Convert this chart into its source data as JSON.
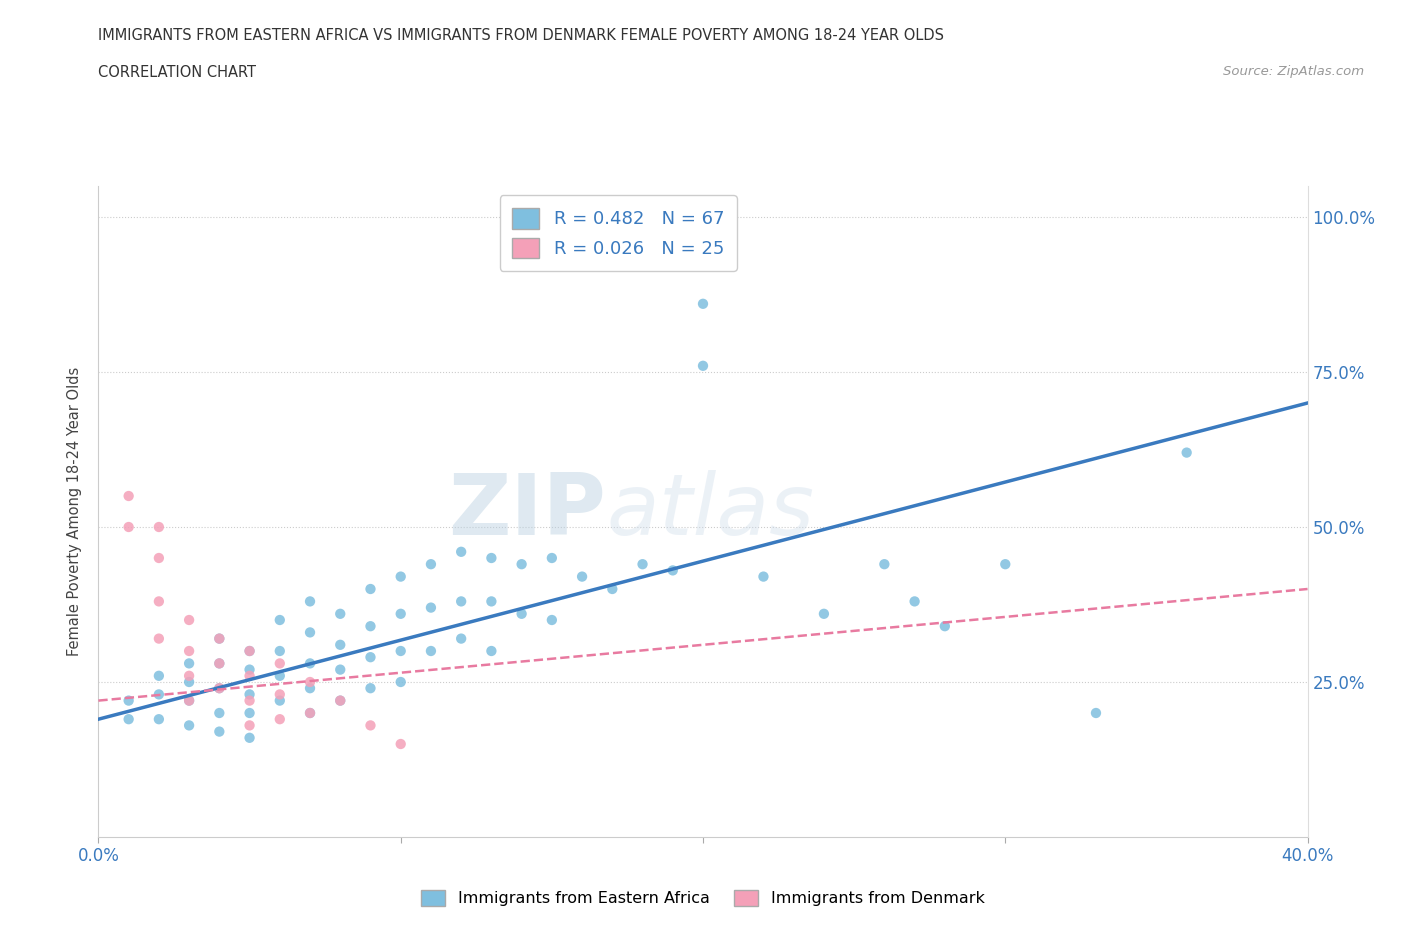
{
  "title_line1": "IMMIGRANTS FROM EASTERN AFRICA VS IMMIGRANTS FROM DENMARK FEMALE POVERTY AMONG 18-24 YEAR OLDS",
  "title_line2": "CORRELATION CHART",
  "source_text": "Source: ZipAtlas.com",
  "ylabel": "Female Poverty Among 18-24 Year Olds",
  "xlim": [
    0.0,
    0.4
  ],
  "ylim": [
    0.0,
    1.05
  ],
  "ytick_positions": [
    0.25,
    0.5,
    0.75,
    1.0
  ],
  "ytick_labels": [
    "25.0%",
    "50.0%",
    "75.0%",
    "100.0%"
  ],
  "blue_color": "#7fbfdf",
  "pink_color": "#f4a0b8",
  "blue_line_color": "#3a7abf",
  "pink_line_color": "#e87aa0",
  "R_blue": 0.482,
  "N_blue": 67,
  "R_pink": 0.026,
  "N_pink": 25,
  "watermark": "ZIPatlas",
  "legend_blue_label": "Immigrants from Eastern Africa",
  "legend_pink_label": "Immigrants from Denmark",
  "blue_scatter_x": [
    0.01,
    0.01,
    0.02,
    0.02,
    0.02,
    0.03,
    0.03,
    0.03,
    0.03,
    0.04,
    0.04,
    0.04,
    0.04,
    0.04,
    0.05,
    0.05,
    0.05,
    0.05,
    0.05,
    0.06,
    0.06,
    0.06,
    0.06,
    0.07,
    0.07,
    0.07,
    0.07,
    0.07,
    0.08,
    0.08,
    0.08,
    0.08,
    0.09,
    0.09,
    0.09,
    0.09,
    0.1,
    0.1,
    0.1,
    0.1,
    0.11,
    0.11,
    0.11,
    0.12,
    0.12,
    0.12,
    0.13,
    0.13,
    0.13,
    0.14,
    0.14,
    0.15,
    0.15,
    0.16,
    0.17,
    0.18,
    0.19,
    0.2,
    0.2,
    0.22,
    0.24,
    0.26,
    0.27,
    0.28,
    0.3,
    0.33,
    0.36
  ],
  "blue_scatter_y": [
    0.22,
    0.19,
    0.26,
    0.23,
    0.19,
    0.28,
    0.25,
    0.22,
    0.18,
    0.32,
    0.28,
    0.24,
    0.2,
    0.17,
    0.3,
    0.27,
    0.23,
    0.2,
    0.16,
    0.35,
    0.3,
    0.26,
    0.22,
    0.38,
    0.33,
    0.28,
    0.24,
    0.2,
    0.36,
    0.31,
    0.27,
    0.22,
    0.4,
    0.34,
    0.29,
    0.24,
    0.42,
    0.36,
    0.3,
    0.25,
    0.44,
    0.37,
    0.3,
    0.46,
    0.38,
    0.32,
    0.45,
    0.38,
    0.3,
    0.44,
    0.36,
    0.45,
    0.35,
    0.42,
    0.4,
    0.44,
    0.43,
    0.86,
    0.76,
    0.42,
    0.36,
    0.44,
    0.38,
    0.34,
    0.44,
    0.2,
    0.62
  ],
  "pink_scatter_x": [
    0.01,
    0.01,
    0.02,
    0.02,
    0.02,
    0.02,
    0.03,
    0.03,
    0.03,
    0.03,
    0.04,
    0.04,
    0.04,
    0.05,
    0.05,
    0.05,
    0.05,
    0.06,
    0.06,
    0.06,
    0.07,
    0.07,
    0.08,
    0.09,
    0.1
  ],
  "pink_scatter_y": [
    0.55,
    0.5,
    0.5,
    0.45,
    0.38,
    0.32,
    0.35,
    0.3,
    0.26,
    0.22,
    0.32,
    0.28,
    0.24,
    0.3,
    0.26,
    0.22,
    0.18,
    0.28,
    0.23,
    0.19,
    0.25,
    0.2,
    0.22,
    0.18,
    0.15
  ],
  "blue_trend_x": [
    0.0,
    0.4
  ],
  "blue_trend_y": [
    0.19,
    0.7
  ],
  "pink_trend_x": [
    0.0,
    0.4
  ],
  "pink_trend_y": [
    0.22,
    0.4
  ]
}
